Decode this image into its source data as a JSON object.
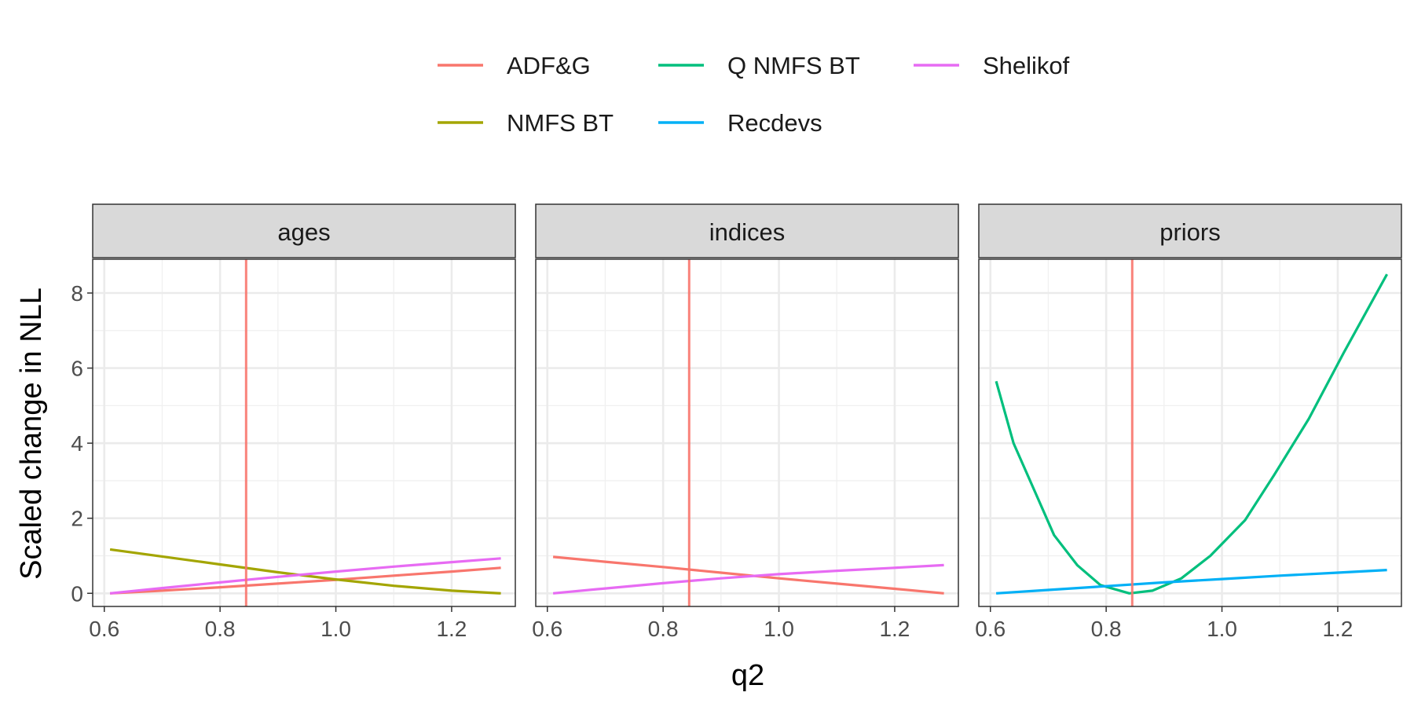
{
  "chart_data": {
    "type": "line",
    "facet_by": "component",
    "xlabel": "q2",
    "ylabel": "Scaled change in NLL",
    "xlim": [
      0.58,
      1.31
    ],
    "ylim": [
      -0.35,
      8.9
    ],
    "x_ticks": [
      0.6,
      0.8,
      1.0,
      1.2
    ],
    "y_ticks": [
      0,
      2,
      4,
      6,
      8
    ],
    "x_tick_labels": [
      "0.6",
      "0.8",
      "1.0",
      "1.2"
    ],
    "y_tick_labels": [
      "0",
      "2",
      "4",
      "6",
      "8"
    ],
    "grid": true,
    "legend_position": "top",
    "reference_line": {
      "x": 0.845,
      "color": "#F8766D"
    },
    "legend": [
      {
        "name": "ADF&G",
        "color": "#F8766D"
      },
      {
        "name": "Q NMFS BT",
        "color": "#00BF7D"
      },
      {
        "name": "Shelikof",
        "color": "#E76BF3"
      },
      {
        "name": "NMFS BT",
        "color": "#A3A500"
      },
      {
        "name": "Recdevs",
        "color": "#00B0F6"
      }
    ],
    "panels": [
      {
        "title": "ages",
        "series": [
          {
            "name": "ADF&G",
            "x": [
              0.61,
              0.7,
              0.8,
              0.9,
              1.0,
              1.1,
              1.2,
              1.285
            ],
            "y": [
              0.0,
              0.07,
              0.16,
              0.26,
              0.36,
              0.47,
              0.58,
              0.68
            ]
          },
          {
            "name": "NMFS BT",
            "x": [
              0.61,
              0.7,
              0.8,
              0.9,
              1.0,
              1.1,
              1.2,
              1.285
            ],
            "y": [
              1.17,
              0.98,
              0.77,
              0.56,
              0.37,
              0.2,
              0.07,
              0.0
            ]
          },
          {
            "name": "Shelikof",
            "x": [
              0.61,
              0.7,
              0.8,
              0.9,
              1.0,
              1.1,
              1.2,
              1.285
            ],
            "y": [
              0.0,
              0.14,
              0.29,
              0.44,
              0.58,
              0.71,
              0.83,
              0.93
            ]
          }
        ]
      },
      {
        "title": "indices",
        "series": [
          {
            "name": "ADF&G",
            "x": [
              0.61,
              0.7,
              0.8,
              0.9,
              1.0,
              1.1,
              1.2,
              1.285
            ],
            "y": [
              0.97,
              0.84,
              0.7,
              0.55,
              0.4,
              0.26,
              0.12,
              0.0
            ]
          },
          {
            "name": "Shelikof",
            "x": [
              0.61,
              0.7,
              0.8,
              0.9,
              1.0,
              1.1,
              1.2,
              1.285
            ],
            "y": [
              0.0,
              0.13,
              0.27,
              0.4,
              0.51,
              0.6,
              0.68,
              0.75
            ]
          }
        ]
      },
      {
        "title": "priors",
        "series": [
          {
            "name": "Q NMFS BT",
            "x": [
              0.61,
              0.64,
              0.68,
              0.71,
              0.75,
              0.79,
              0.84,
              0.88,
              0.93,
              0.98,
              1.04,
              1.09,
              1.15,
              1.21,
              1.285
            ],
            "y": [
              5.65,
              4.0,
              2.6,
              1.55,
              0.75,
              0.22,
              0.0,
              0.07,
              0.4,
              1.0,
              1.95,
              3.15,
              4.65,
              6.4,
              8.5
            ]
          },
          {
            "name": "Recdevs",
            "x": [
              0.61,
              0.7,
              0.8,
              0.9,
              1.0,
              1.1,
              1.2,
              1.285
            ],
            "y": [
              0.0,
              0.09,
              0.19,
              0.29,
              0.38,
              0.47,
              0.55,
              0.62
            ]
          }
        ]
      }
    ]
  }
}
